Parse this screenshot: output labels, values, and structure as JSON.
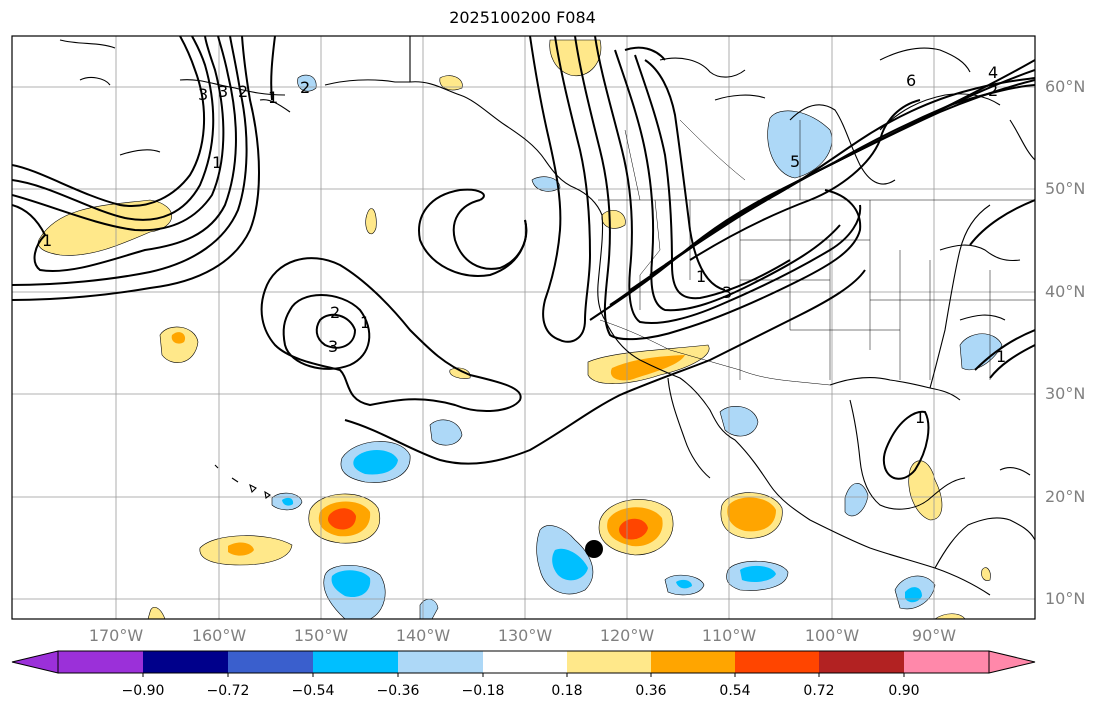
{
  "title": "2025100200 F084",
  "lat_labels": [
    "60°N",
    "50°N",
    "40°N",
    "30°N",
    "20°N",
    "10°N"
  ],
  "lon_labels": [
    "170°W",
    "160°W",
    "150°W",
    "140°W",
    "130°W",
    "120°W",
    "110°W",
    "100°W",
    "90°W"
  ],
  "colorbar": {
    "labels": [
      "−0.90",
      "−0.72",
      "−0.54",
      "−0.36",
      "−0.18",
      "0.18",
      "0.36",
      "0.54",
      "0.72",
      "0.90"
    ],
    "colors": [
      "#9b30d9",
      "#00008b",
      "#3a5fcd",
      "#00bfff",
      "#add8f7",
      "#ffffff",
      "#ffe88a",
      "#ffa500",
      "#ff4500",
      "#b22222",
      "#ff88aa"
    ]
  },
  "contour_labels": [
    "1",
    "2",
    "3",
    "6",
    "4",
    "2",
    "3",
    "1",
    "2",
    "3",
    "1",
    "3",
    "5",
    "2",
    "1",
    "1",
    "1",
    "1"
  ],
  "marker": "storm-position-dot"
}
